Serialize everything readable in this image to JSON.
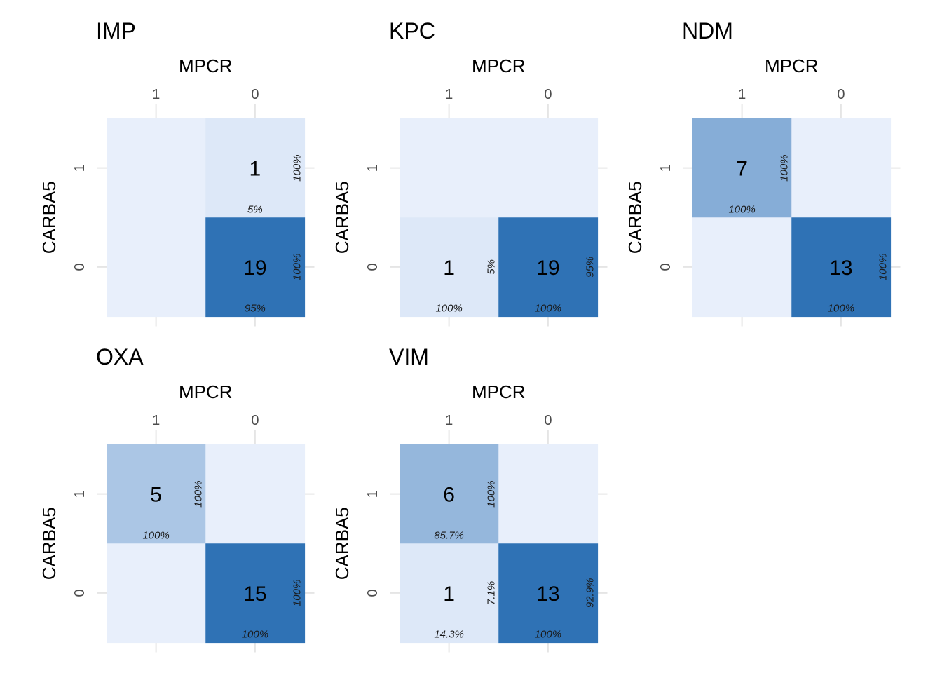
{
  "chart_data": [
    {
      "type": "heatmap",
      "title": "IMP",
      "xlabel": "MPCR",
      "ylabel": "CARBA5",
      "x_categories": [
        "1",
        "0"
      ],
      "y_categories": [
        "1",
        "0"
      ],
      "cells": [
        {
          "row": "1",
          "col": "1",
          "count": null,
          "row_pct": "",
          "col_pct": ""
        },
        {
          "row": "1",
          "col": "0",
          "count": 1,
          "row_pct": "100%",
          "col_pct": "5%"
        },
        {
          "row": "0",
          "col": "1",
          "count": null,
          "row_pct": "",
          "col_pct": ""
        },
        {
          "row": "0",
          "col": "0",
          "count": 19,
          "row_pct": "100%",
          "col_pct": "95%"
        }
      ]
    },
    {
      "type": "heatmap",
      "title": "KPC",
      "xlabel": "MPCR",
      "ylabel": "CARBA5",
      "x_categories": [
        "1",
        "0"
      ],
      "y_categories": [
        "1",
        "0"
      ],
      "cells": [
        {
          "row": "1",
          "col": "1",
          "count": null,
          "row_pct": "",
          "col_pct": ""
        },
        {
          "row": "1",
          "col": "0",
          "count": null,
          "row_pct": "",
          "col_pct": ""
        },
        {
          "row": "0",
          "col": "1",
          "count": 1,
          "row_pct": "5%",
          "col_pct": "100%"
        },
        {
          "row": "0",
          "col": "0",
          "count": 19,
          "row_pct": "95%",
          "col_pct": "100%"
        }
      ]
    },
    {
      "type": "heatmap",
      "title": "NDM",
      "xlabel": "MPCR",
      "ylabel": "CARBA5",
      "x_categories": [
        "1",
        "0"
      ],
      "y_categories": [
        "1",
        "0"
      ],
      "cells": [
        {
          "row": "1",
          "col": "1",
          "count": 7,
          "row_pct": "100%",
          "col_pct": "100%"
        },
        {
          "row": "1",
          "col": "0",
          "count": null,
          "row_pct": "",
          "col_pct": ""
        },
        {
          "row": "0",
          "col": "1",
          "count": null,
          "row_pct": "",
          "col_pct": ""
        },
        {
          "row": "0",
          "col": "0",
          "count": 13,
          "row_pct": "100%",
          "col_pct": "100%"
        }
      ]
    },
    {
      "type": "heatmap",
      "title": "OXA",
      "xlabel": "MPCR",
      "ylabel": "CARBA5",
      "x_categories": [
        "1",
        "0"
      ],
      "y_categories": [
        "1",
        "0"
      ],
      "cells": [
        {
          "row": "1",
          "col": "1",
          "count": 5,
          "row_pct": "100%",
          "col_pct": "100%"
        },
        {
          "row": "1",
          "col": "0",
          "count": null,
          "row_pct": "",
          "col_pct": ""
        },
        {
          "row": "0",
          "col": "1",
          "count": null,
          "row_pct": "",
          "col_pct": ""
        },
        {
          "row": "0",
          "col": "0",
          "count": 15,
          "row_pct": "100%",
          "col_pct": "100%"
        }
      ]
    },
    {
      "type": "heatmap",
      "title": "VIM",
      "xlabel": "MPCR",
      "ylabel": "CARBA5",
      "x_categories": [
        "1",
        "0"
      ],
      "y_categories": [
        "1",
        "0"
      ],
      "cells": [
        {
          "row": "1",
          "col": "1",
          "count": 6,
          "row_pct": "100%",
          "col_pct": "85.7%"
        },
        {
          "row": "1",
          "col": "0",
          "count": null,
          "row_pct": "",
          "col_pct": ""
        },
        {
          "row": "0",
          "col": "1",
          "count": 1,
          "row_pct": "7.1%",
          "col_pct": "14.3%"
        },
        {
          "row": "0",
          "col": "0",
          "count": 13,
          "row_pct": "92.9%",
          "col_pct": "100%"
        }
      ]
    }
  ],
  "colors": {
    "empty_cell": "#e8effb",
    "scale_low": "#dde8f8",
    "scale_high": "#2f72b5",
    "gridline": "#e5e5e5",
    "text": "#000000",
    "tick_text": "#4d4d4d",
    "pct_text": "#1a1a1a"
  }
}
